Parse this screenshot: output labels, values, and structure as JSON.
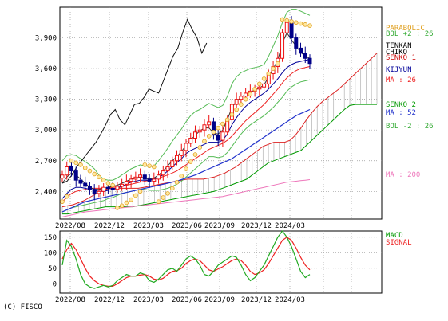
{
  "copyright": "(C) FISCO",
  "chart_data": [
    {
      "type": "candlestick",
      "panel": "price",
      "x_ticks": [
        "2022/08",
        "2022/12",
        "2023/03",
        "2023/06",
        "2023/09",
        "2023/12",
        "2024/03"
      ],
      "y_ticks": [
        "3,900",
        "3,600",
        "3,300",
        "3,000",
        "2,700",
        "2,400"
      ],
      "y_tick_values": [
        3900,
        3600,
        3300,
        3000,
        2700,
        2400
      ],
      "ylim": [
        2130,
        4200
      ],
      "grid": true,
      "legend": [
        {
          "label": "PARABOLIC",
          "color": "#e0a020"
        },
        {
          "label": "BOL +2 : 26",
          "color": "#33aa33"
        },
        {
          "label": "TENKAN",
          "color": "#000000"
        },
        {
          "label": "CHIKO",
          "color": "#000000"
        },
        {
          "label": "SENKO 1",
          "color": "#cc0000"
        },
        {
          "label": "KIJYUN",
          "color": "#000099"
        },
        {
          "label": "MA : 26",
          "color": "#ee2222"
        },
        {
          "label": "SENKO 2",
          "color": "#009900"
        },
        {
          "label": "MA : 52",
          "color": "#2233cc"
        },
        {
          "label": "BOL -2 : 26",
          "color": "#33aa33"
        },
        {
          "label": "MA : 200",
          "color": "#ee77bb"
        }
      ],
      "close": [
        2560,
        2640,
        2600,
        2510,
        2480,
        2450,
        2420,
        2380,
        2400,
        2440,
        2430,
        2420,
        2450,
        2470,
        2500,
        2520,
        2540,
        2560,
        2520,
        2500,
        2520,
        2560,
        2600,
        2640,
        2700,
        2750,
        2800,
        2870,
        2920,
        2980,
        3000,
        3050,
        3080,
        2950,
        2900,
        2980,
        3100,
        3250,
        3300,
        3330,
        3360,
        3380,
        3400,
        3420,
        3450,
        3550,
        3620,
        3700,
        3950,
        4050,
        3900,
        3800,
        3750,
        3700,
        3650
      ],
      "chiko": [
        2480,
        2500,
        2560,
        2640,
        2700,
        2760,
        2820,
        2880,
        2960,
        3050,
        3150,
        3200,
        3100,
        3050,
        3150,
        3250,
        3260,
        3320,
        3400,
        3380,
        3360,
        3480,
        3600,
        3720,
        3800,
        3950,
        4080,
        3980,
        3900,
        3750,
        3850
      ],
      "tenkan": [
        2480,
        2540,
        2580,
        2560,
        2520,
        2480,
        2440,
        2420,
        2420,
        2430,
        2440,
        2450,
        2460,
        2480,
        2500,
        2520,
        2530,
        2540,
        2530,
        2520,
        2530,
        2560,
        2600,
        2650,
        2700,
        2740,
        2790,
        2850,
        2900,
        2950,
        2990,
        3020,
        3020,
        2970,
        2960,
        3000,
        3100,
        3220,
        3280,
        3320,
        3350,
        3370,
        3390,
        3410,
        3440,
        3520,
        3600,
        3680,
        3850,
        3950,
        3880,
        3820,
        3760,
        3720,
        3700
      ],
      "kijyun": [
        2330,
        2380,
        2420,
        2440,
        2440,
        2430,
        2420,
        2410,
        2400,
        2400,
        2410,
        2420,
        2430,
        2450,
        2470,
        2490,
        2500,
        2510,
        2510,
        2510,
        2520,
        2540,
        2560,
        2600,
        2640,
        2680,
        2720,
        2770,
        2800,
        2820,
        2840,
        2860,
        2880,
        2880,
        2880,
        2900,
        2960,
        3050,
        3120,
        3180,
        3230,
        3270,
        3300,
        3330,
        3360,
        3400,
        3450,
        3500,
        3560,
        3610,
        3640,
        3660,
        3670,
        3680,
        3690
      ],
      "ma26": [
        2300,
        2340,
        2380,
        2400,
        2410,
        2420,
        2430,
        2430,
        2430,
        2430,
        2435,
        2440,
        2445,
        2450,
        2460,
        2470,
        2480,
        2490,
        2500,
        2510,
        2520,
        2530,
        2545,
        2560,
        2580,
        2600,
        2630,
        2660,
        2690,
        2720,
        2750,
        2780,
        2810,
        2830,
        2850,
        2870,
        2900,
        2940,
        2990,
        3040,
        3090,
        3130,
        3170,
        3210,
        3250,
        3300,
        3350,
        3400,
        3460,
        3510,
        3550,
        3580,
        3600,
        3610,
        3620
      ],
      "ma52": [
        2200,
        2220,
        2240,
        2260,
        2280,
        2300,
        2310,
        2320,
        2330,
        2340,
        2350,
        2360,
        2370,
        2380,
        2390,
        2400,
        2410,
        2420,
        2430,
        2440,
        2450,
        2460,
        2470,
        2480,
        2490,
        2500,
        2515,
        2530,
        2545,
        2560,
        2580,
        2600,
        2620,
        2640,
        2660,
        2680,
        2700,
        2720,
        2750,
        2780,
        2810,
        2840,
        2870,
        2900,
        2930,
        2960,
        2990,
        3020,
        3050,
        3080,
        3110,
        3140,
        3160,
        3180,
        3200
      ],
      "ma200": [
        2150,
        2160,
        2170,
        2180,
        2190,
        2200,
        2205,
        2210,
        2215,
        2220,
        2225,
        2230,
        2235,
        2240,
        2245,
        2250,
        2255,
        2260,
        2265,
        2270,
        2275,
        2280,
        2285,
        2290,
        2295,
        2300,
        2305,
        2310,
        2315,
        2320,
        2325,
        2330,
        2335,
        2340,
        2345,
        2350,
        2360,
        2370,
        2380,
        2390,
        2400,
        2410,
        2420,
        2430,
        2440,
        2450,
        2460,
        2470,
        2480,
        2490,
        2495,
        2500,
        2505,
        2510,
        2515
      ],
      "bol_upper": [
        2700,
        2750,
        2760,
        2750,
        2720,
        2690,
        2660,
        2620,
        2560,
        2520,
        2510,
        2510,
        2530,
        2560,
        2590,
        2620,
        2640,
        2660,
        2650,
        2640,
        2650,
        2700,
        2760,
        2820,
        2890,
        2950,
        3010,
        3080,
        3140,
        3180,
        3200,
        3230,
        3260,
        3240,
        3220,
        3240,
        3330,
        3450,
        3520,
        3560,
        3580,
        3600,
        3610,
        3620,
        3640,
        3720,
        3820,
        3920,
        4050,
        4150,
        4180,
        4180,
        4160,
        4140,
        4120
      ],
      "bol_lower": [
        2200,
        2220,
        2240,
        2250,
        2260,
        2270,
        2280,
        2290,
        2300,
        2310,
        2330,
        2340,
        2360,
        2380,
        2390,
        2400,
        2410,
        2420,
        2420,
        2410,
        2410,
        2410,
        2420,
        2430,
        2450,
        2470,
        2500,
        2540,
        2580,
        2620,
        2660,
        2700,
        2740,
        2740,
        2730,
        2740,
        2780,
        2840,
        2900,
        2960,
        3010,
        3050,
        3080,
        3110,
        3140,
        3180,
        3220,
        3270,
        3320,
        3380,
        3420,
        3450,
        3470,
        3480,
        3490
      ],
      "senko1": [
        2250,
        2260,
        2270,
        2290,
        2310,
        2340,
        2370,
        2400,
        2420,
        2430,
        2430,
        2430,
        2430,
        2430,
        2430,
        2440,
        2450,
        2460,
        2470,
        2480,
        2490,
        2500,
        2510,
        2520,
        2520,
        2520,
        2520,
        2530,
        2540,
        2560,
        2580,
        2610,
        2640,
        2680,
        2720,
        2760,
        2800,
        2840,
        2860,
        2880,
        2880,
        2880,
        2900,
        2950,
        3020,
        3100,
        3170,
        3230,
        3280,
        3320,
        3360,
        3400,
        3450,
        3500,
        3550,
        3600,
        3650,
        3700,
        3750
      ],
      "senko2": [
        2180,
        2180,
        2190,
        2200,
        2210,
        2220,
        2230,
        2240,
        2250,
        2250,
        2250,
        2250,
        2250,
        2250,
        2260,
        2270,
        2280,
        2290,
        2300,
        2310,
        2320,
        2330,
        2340,
        2350,
        2360,
        2370,
        2380,
        2390,
        2400,
        2420,
        2440,
        2460,
        2480,
        2500,
        2520,
        2560,
        2600,
        2640,
        2680,
        2700,
        2720,
        2740,
        2760,
        2780,
        2800,
        2850,
        2900,
        2950,
        3000,
        3050,
        3100,
        3150,
        3200,
        3240,
        3250,
        3250,
        3250,
        3250,
        3250
      ],
      "parabolic": [
        2300,
        2350,
        2700,
        2680,
        2660,
        2630,
        2600,
        2570,
        2540,
        2510,
        2480,
        2460,
        2240,
        2260,
        2290,
        2320,
        2360,
        2400,
        2660,
        2650,
        2640,
        2300,
        2340,
        2380,
        2430,
        2490,
        2550,
        2620,
        2690,
        2760,
        2830,
        2890,
        2940,
        2980,
        3020,
        3060,
        3100,
        3150,
        3200,
        3250,
        3300,
        3350,
        3400,
        3450,
        3500,
        3550,
        3600,
        3650,
        4080,
        4070,
        4060,
        4050,
        4040,
        4030,
        4020
      ]
    },
    {
      "type": "line",
      "panel": "macd",
      "x_ticks": [
        "2022/08",
        "2022/12",
        "2023/03",
        "2023/06",
        "2023/09",
        "2023/12",
        "2024/03"
      ],
      "y_ticks": [
        "150",
        "100",
        "50",
        "0"
      ],
      "y_tick_values": [
        150,
        100,
        50,
        0
      ],
      "ylim": [
        -30,
        170
      ],
      "grid": true,
      "legend": [
        {
          "label": "MACD",
          "color": "#009900"
        },
        {
          "label": "SIGNAL",
          "color": "#ee2222"
        }
      ],
      "series": [
        {
          "name": "MACD",
          "values": [
            60,
            140,
            120,
            80,
            30,
            0,
            -10,
            -15,
            -10,
            -5,
            -10,
            -5,
            10,
            20,
            30,
            25,
            25,
            35,
            30,
            10,
            5,
            15,
            30,
            45,
            50,
            40,
            60,
            80,
            90,
            80,
            60,
            30,
            25,
            40,
            60,
            70,
            80,
            90,
            85,
            60,
            30,
            10,
            20,
            40,
            60,
            90,
            120,
            150,
            170,
            150,
            120,
            80,
            40,
            20,
            30
          ]
        },
        {
          "name": "SIGNAL",
          "values": [
            80,
            110,
            130,
            110,
            80,
            50,
            25,
            10,
            0,
            -5,
            -8,
            -8,
            0,
            10,
            20,
            25,
            25,
            28,
            30,
            25,
            15,
            12,
            18,
            30,
            40,
            42,
            50,
            65,
            75,
            80,
            75,
            60,
            45,
            40,
            48,
            55,
            65,
            75,
            80,
            75,
            60,
            40,
            30,
            35,
            45,
            65,
            90,
            115,
            140,
            150,
            140,
            115,
            85,
            60,
            45
          ]
        }
      ]
    }
  ]
}
